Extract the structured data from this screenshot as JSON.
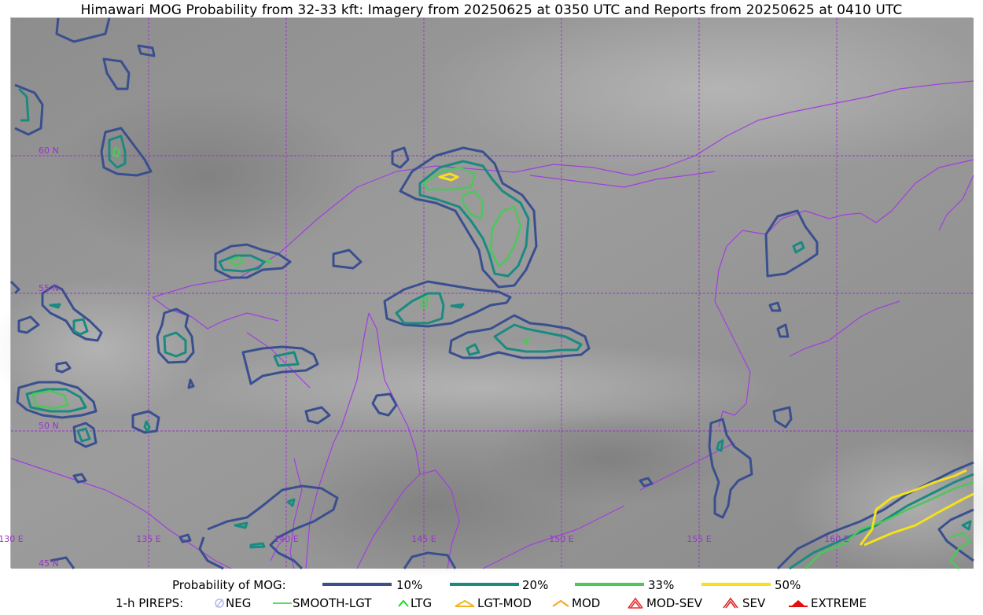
{
  "title": "Himawari MOG Probability from 32-33 kft: Imagery from 20250625 at 0350 UTC and Reports from 20250625 at 0410 UTC",
  "map": {
    "lon_labels": [
      "130 E",
      "135 E",
      "140 E",
      "145 E",
      "150 E",
      "155 E",
      "160 E"
    ],
    "lat_labels": [
      "60 N",
      "55 N",
      "50 N",
      "45 N"
    ],
    "grid_color": "#9b30d0",
    "coast_color": "#a23ee0"
  },
  "legend": {
    "prob_title": "Probability of MOG:",
    "prob_items": [
      {
        "label": "10%",
        "color": "#3a4f8f"
      },
      {
        "label": "20%",
        "color": "#1b8a80"
      },
      {
        "label": "33%",
        "color": "#4cc75a"
      },
      {
        "label": "50%",
        "color": "#f5e11a"
      }
    ],
    "pirep_title": "1-h PIREPS:",
    "pirep_items": [
      {
        "label": "NEG",
        "icon": "neg-icon",
        "color": "#b9b9ee"
      },
      {
        "label": "SMOOTH-LGT",
        "icon": "smooth-lgt-icon",
        "color": "#33cc33"
      },
      {
        "label": "LTG",
        "icon": "ltg-icon",
        "color": "#22dd22"
      },
      {
        "label": "LGT-MOD",
        "icon": "lgt-mod-icon",
        "color": "#f2b51c"
      },
      {
        "label": "MOD",
        "icon": "mod-icon",
        "color": "#f5a623"
      },
      {
        "label": "MOD-SEV",
        "icon": "mod-sev-icon",
        "color": "#e83030"
      },
      {
        "label": "SEV",
        "icon": "sev-icon",
        "color": "#e02525"
      },
      {
        "label": "EXTREME",
        "icon": "extreme-icon",
        "color": "#e01010"
      }
    ]
  }
}
